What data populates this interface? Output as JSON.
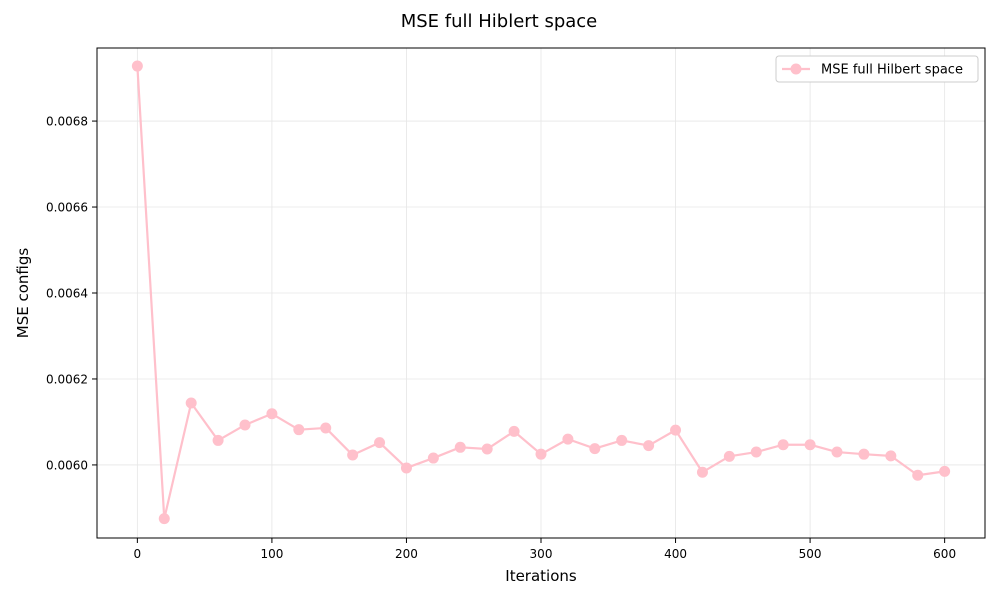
{
  "chart_data": {
    "type": "line",
    "title": "MSE full Hiblert space",
    "xlabel": "Iterations",
    "ylabel": "MSE configs",
    "xlim": [
      -30,
      630
    ],
    "ylim": [
      0.00583,
      0.00697
    ],
    "xticks": [
      0,
      100,
      200,
      300,
      400,
      500,
      600
    ],
    "yticks": [
      0.006,
      0.0062,
      0.0064,
      0.0066,
      0.0068
    ],
    "ytick_labels": [
      "0.0060",
      "0.0062",
      "0.0064",
      "0.0066",
      "0.0068"
    ],
    "grid": true,
    "legend_position": "top-right",
    "series": [
      {
        "name": "MSE full Hilbert space",
        "color": "#ffc0cb",
        "marker": "circle",
        "x": [
          0,
          20,
          40,
          60,
          80,
          100,
          120,
          140,
          160,
          180,
          200,
          220,
          240,
          260,
          280,
          300,
          320,
          340,
          360,
          380,
          400,
          420,
          440,
          460,
          480,
          500,
          520,
          540,
          560,
          580,
          600
        ],
        "y": [
          0.006928,
          0.005875,
          0.006144,
          0.006057,
          0.006093,
          0.006119,
          0.006082,
          0.006086,
          0.006023,
          0.006052,
          0.005993,
          0.006016,
          0.006041,
          0.006037,
          0.006078,
          0.006025,
          0.00606,
          0.006038,
          0.006057,
          0.006045,
          0.006081,
          0.005983,
          0.00602,
          0.00603,
          0.006047,
          0.006047,
          0.00603,
          0.006025,
          0.006021,
          0.005976,
          0.005985
        ]
      }
    ]
  }
}
